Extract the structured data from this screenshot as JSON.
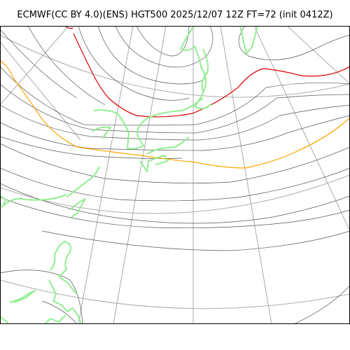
{
  "title": "ECMWF(CC BY 4.0)(ENS) HGT500 2025/12/07 12Z FT=72 (init 0412Z)",
  "colors": {
    "contour": "#555555",
    "contour_5700": "#ffa500",
    "contour_5400": "#dd0000",
    "graticule": "#aaaaaa",
    "coastline": "#90ee90",
    "frame": "#000000"
  },
  "legend_note": "",
  "layers": [
    "graticule",
    "geopotential-height-contours",
    "coastlines"
  ]
}
